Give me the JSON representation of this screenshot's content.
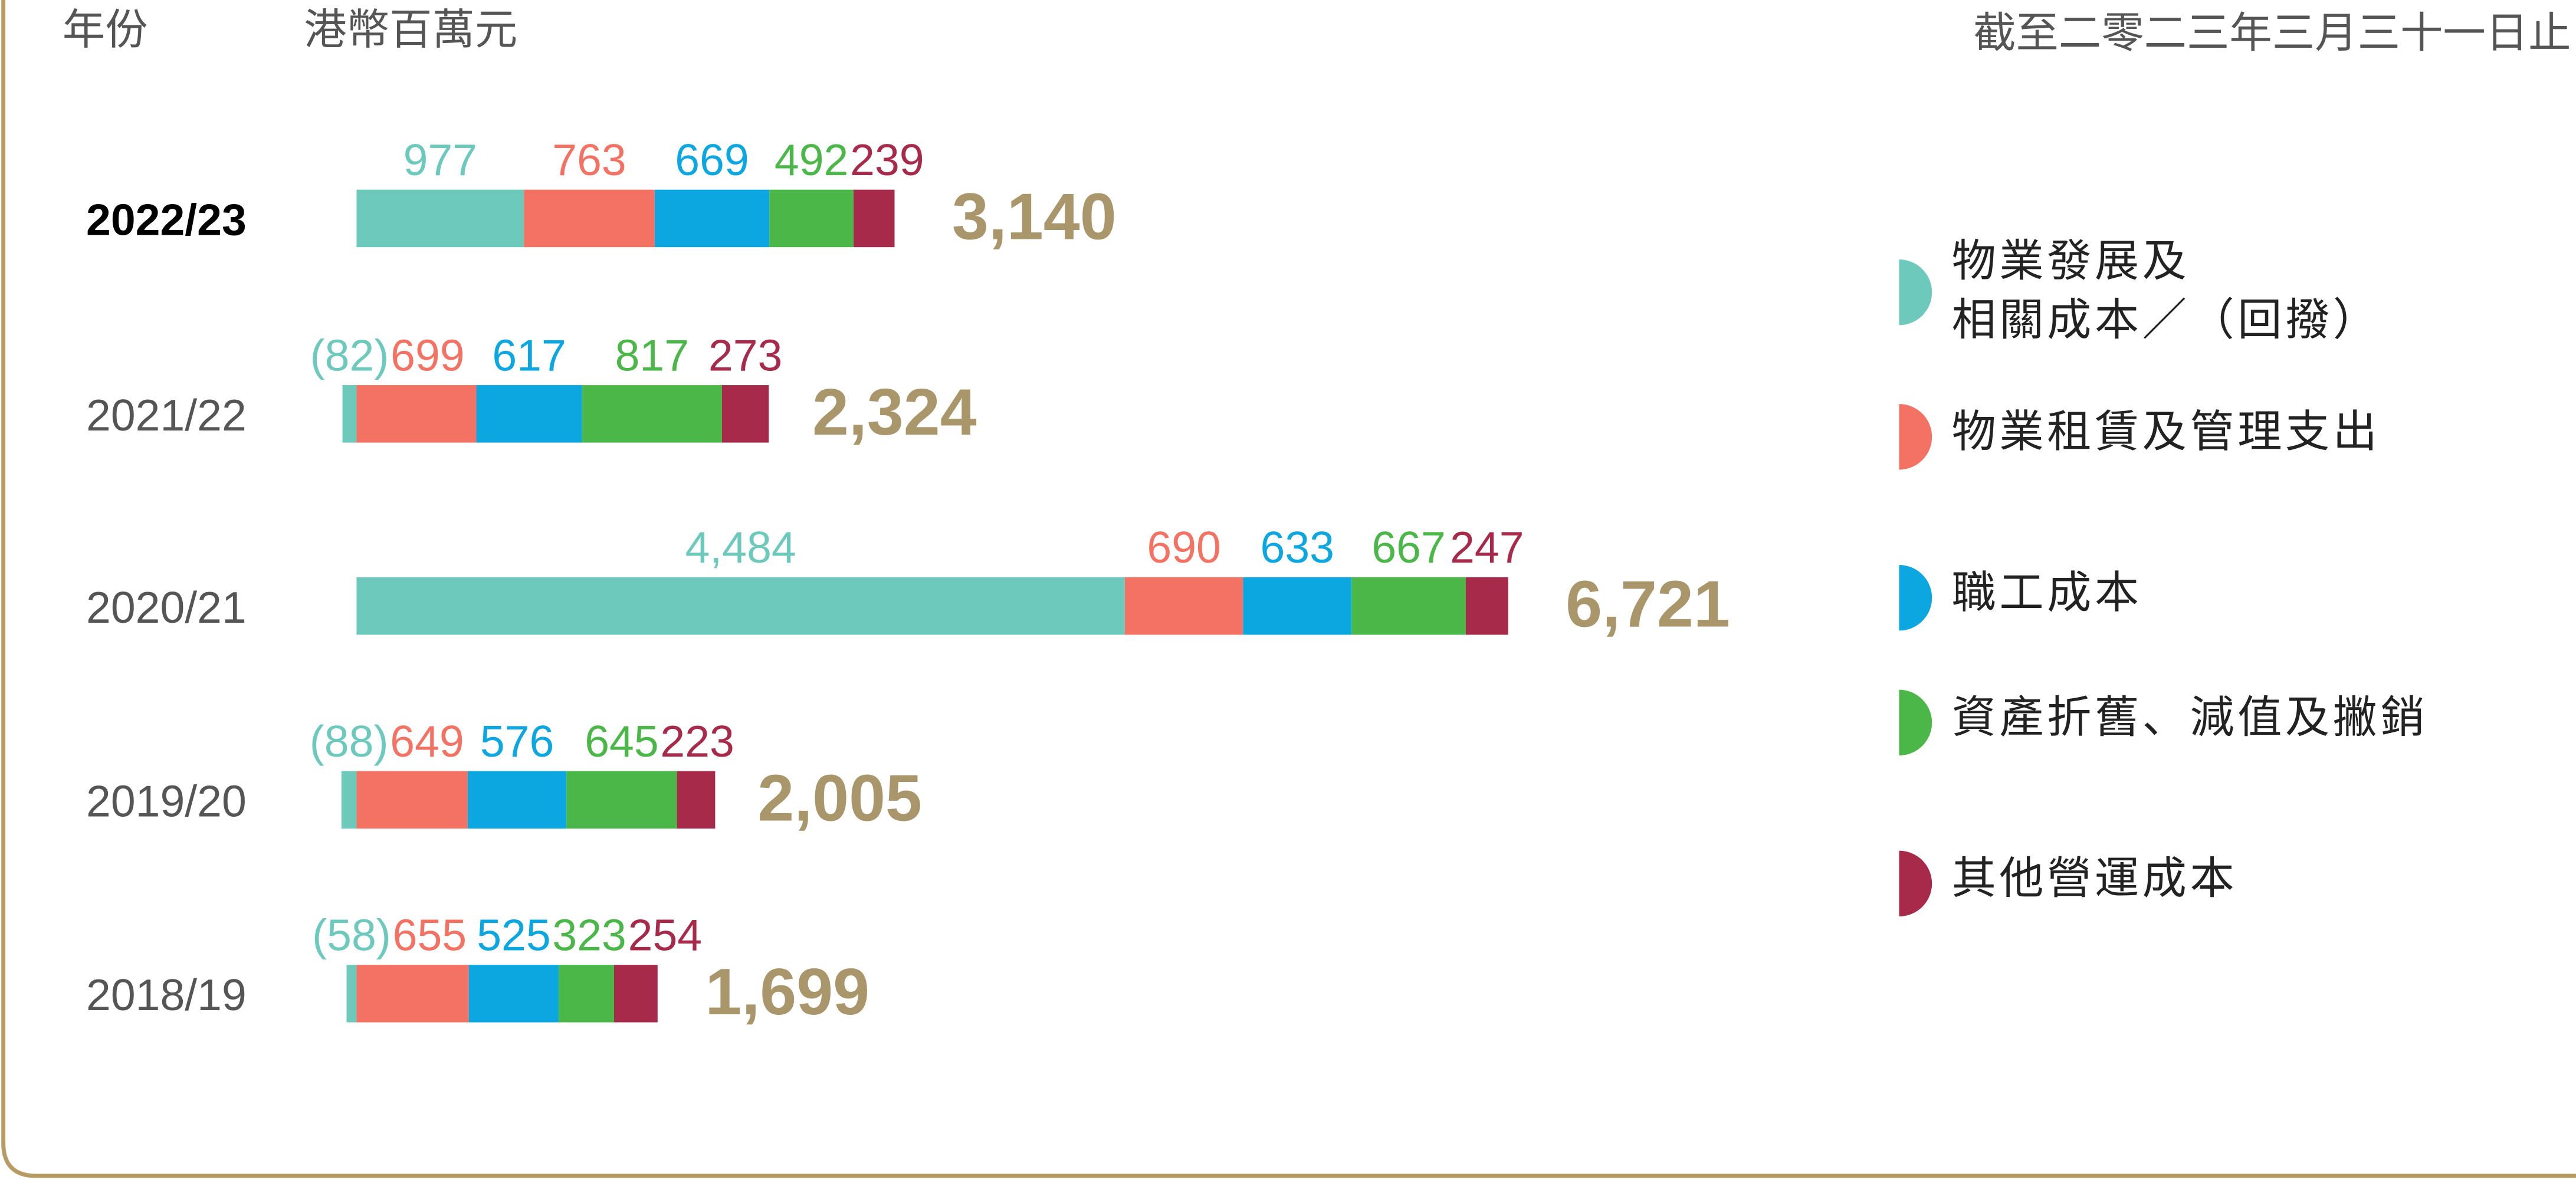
{
  "chart_data": {
    "type": "stacked-bar-horizontal",
    "header_left": "年份",
    "unit": "港幣百萬元",
    "header_right": "截至二零二三年三月三十一日止",
    "categories": [
      "2022/23",
      "2021/22",
      "2020/21",
      "2019/20",
      "2018/19"
    ],
    "series": [
      {
        "name": "物業發展及\n相關成本／（回撥）",
        "color": "#6dc9bc",
        "values": [
          977,
          -82,
          4484,
          -88,
          -58
        ],
        "value_labels": [
          "977",
          "(82)",
          "4,484",
          "(88)",
          "(58)"
        ]
      },
      {
        "name": "物業租賃及管理支出",
        "color": "#f37263",
        "values": [
          763,
          699,
          690,
          649,
          655
        ]
      },
      {
        "name": "職工成本",
        "color": "#0ca6e0",
        "values": [
          669,
          617,
          633,
          576,
          525
        ]
      },
      {
        "name": "資產折舊、減值及撇銷",
        "color": "#4cb749",
        "values": [
          492,
          817,
          667,
          645,
          323
        ]
      },
      {
        "name": "其他營運成本",
        "color": "#a82a4b",
        "values": [
          239,
          273,
          247,
          223,
          254
        ]
      }
    ],
    "totals": {
      "color": "#a9966b",
      "values": [
        3140,
        2324,
        6721,
        2005,
        1699
      ],
      "value_labels": [
        "3,140",
        "2,324",
        "6,721",
        "2,005",
        "1,699"
      ]
    }
  }
}
